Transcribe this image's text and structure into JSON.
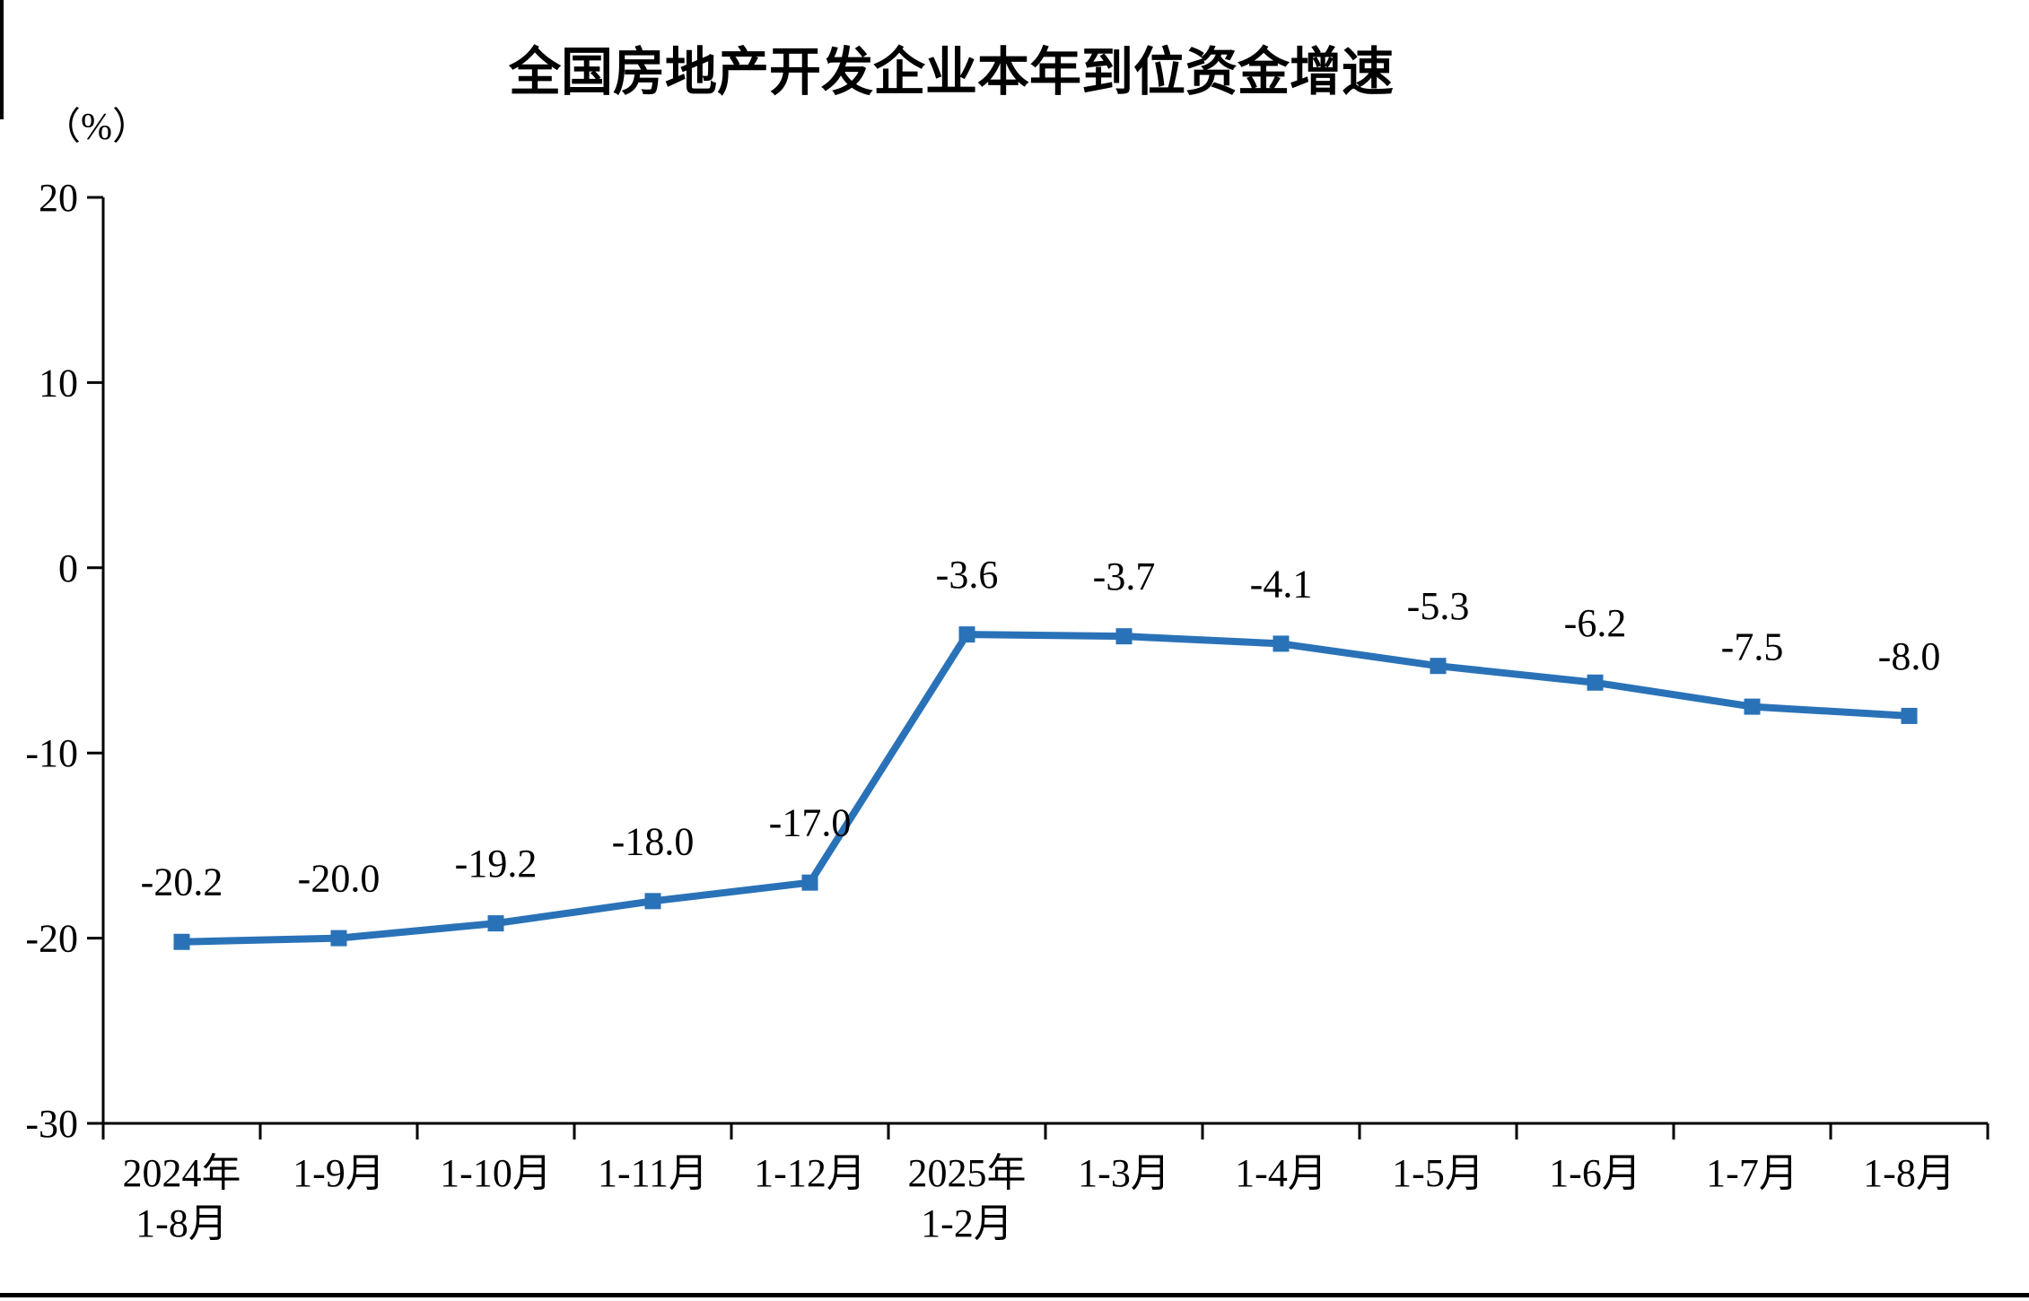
{
  "page": {
    "background": "#ffffff",
    "bottom_rule_color": "#000000"
  },
  "chart_data": {
    "type": "line",
    "title": "全国房地产开发企业本年到位资金增速",
    "unit_label": "（%）",
    "categories": [
      "2024年\n1-8月",
      "1-9月",
      "1-10月",
      "1-11月",
      "1-12月",
      "2025年\n1-2月",
      "1-3月",
      "1-4月",
      "1-5月",
      "1-6月",
      "1-7月",
      "1-8月"
    ],
    "values": [
      -20.2,
      -20.0,
      -19.2,
      -18.0,
      -17.0,
      -3.6,
      -3.7,
      -4.1,
      -5.3,
      -6.2,
      -7.5,
      -8.0
    ],
    "data_labels": [
      "-20.2",
      "-20.0",
      "-19.2",
      "-18.0",
      "-17.0",
      "-3.6",
      "-3.7",
      "-4.1",
      "-5.3",
      "-6.2",
      "-7.5",
      "-8.0"
    ],
    "ylim": [
      -30,
      20
    ],
    "yticks": [
      20,
      10,
      0,
      -10,
      -20,
      -30
    ],
    "grid": false,
    "legend": false,
    "line_color": "#2a72b8",
    "marker": "square",
    "marker_color": "#2a72b8",
    "axis_color": "#000000",
    "text_color": "#000000"
  }
}
